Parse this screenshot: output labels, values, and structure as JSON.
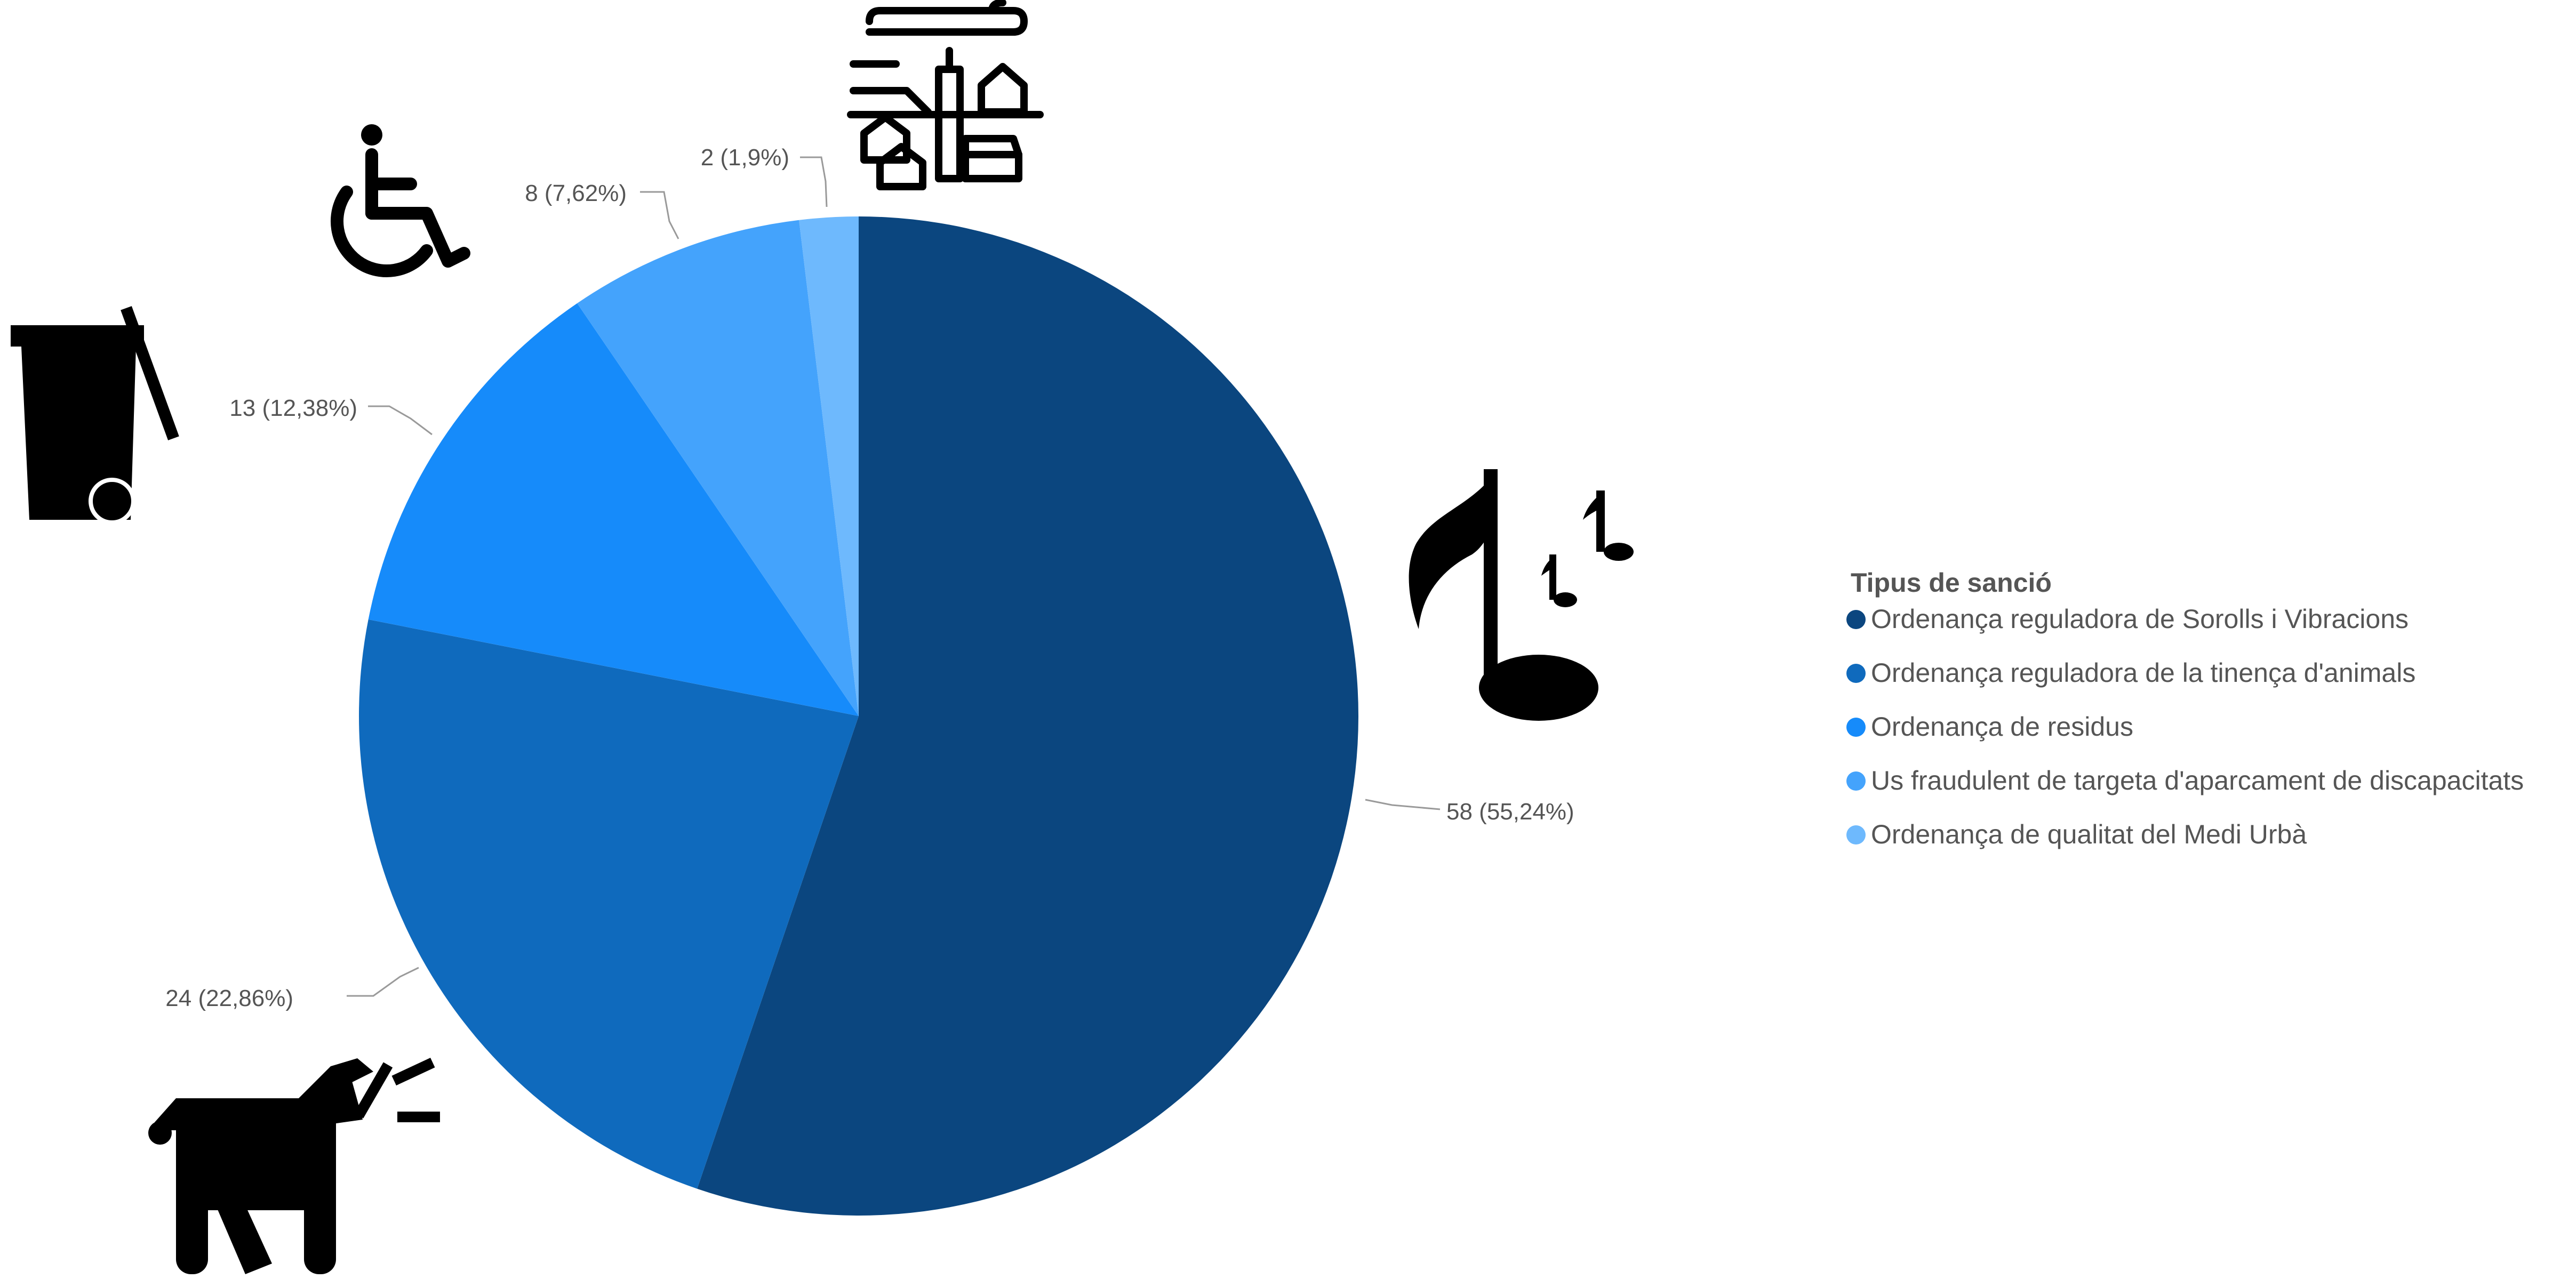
{
  "chart_data": {
    "type": "pie",
    "legend_title": "Tipus de sanció",
    "legend_position": "right",
    "categories": [
      "Ordenança reguladora de Sorolls i Vibracions",
      "Ordenança reguladora de la tinença d'animals",
      "Ordenança de residus",
      "Us fraudulent de targeta d'aparcament de discapacitats",
      "Ordenança de qualitat del Medi Urbà"
    ],
    "values": [
      58,
      24,
      13,
      8,
      2
    ],
    "data_labels": [
      "58 (55,24%)",
      "24 (22,86%)",
      "13 (12,38%)",
      "8 (7,62%)",
      "2 (1,9%)"
    ],
    "colors": [
      "#0b467f",
      "#0f6abd",
      "#168bfa",
      "#44a3fc",
      "#6eb9fd"
    ],
    "icons": [
      "music-notes-icon",
      "barking-dog-icon",
      "trash-bin-icon",
      "wheelchair-icon",
      "town-icon"
    ]
  }
}
